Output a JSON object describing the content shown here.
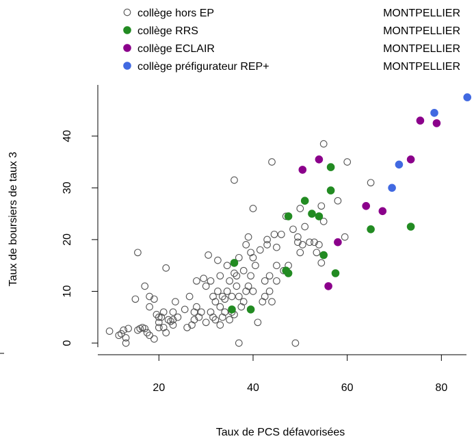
{
  "chart_data": {
    "type": "scatter",
    "xlabel": "Taux de PCS défavorisées",
    "ylabel": "Taux de boursiers de taux 3",
    "xlim": [
      8,
      87
    ],
    "ylim": [
      -1,
      50
    ],
    "x_ticks": [
      20,
      40,
      60,
      80
    ],
    "y_ticks": [
      0,
      10,
      20,
      30,
      40
    ],
    "grid": false,
    "legend_position": "top",
    "series": [
      {
        "name": "collège hors EP",
        "region": "MONTPELLIER",
        "marker": "open-circle",
        "color": "#555555",
        "points": [
          [
            9.5,
            2.3
          ],
          [
            11.5,
            1.5
          ],
          [
            12.5,
            2.5
          ],
          [
            13,
            1
          ],
          [
            13,
            0
          ],
          [
            13.5,
            2.8
          ],
          [
            12,
            1.8
          ],
          [
            15,
            8.5
          ],
          [
            15.5,
            2.5
          ],
          [
            15.5,
            17.5
          ],
          [
            16,
            2.8
          ],
          [
            16.5,
            3
          ],
          [
            17,
            11
          ],
          [
            17,
            2.8
          ],
          [
            17.5,
            2
          ],
          [
            18,
            1.5
          ],
          [
            18,
            7
          ],
          [
            18,
            9
          ],
          [
            19,
            0.8
          ],
          [
            19.5,
            5.5
          ],
          [
            19,
            8.5
          ],
          [
            20,
            5
          ],
          [
            20,
            4
          ],
          [
            20,
            3
          ],
          [
            20.5,
            5
          ],
          [
            21,
            3
          ],
          [
            21,
            6
          ],
          [
            21.5,
            2
          ],
          [
            21.5,
            14.5
          ],
          [
            22,
            4.5
          ],
          [
            22.5,
            4.2
          ],
          [
            23,
            3.5
          ],
          [
            23,
            4.5
          ],
          [
            23,
            6
          ],
          [
            23.5,
            8
          ],
          [
            24,
            5
          ],
          [
            25.5,
            6.5
          ],
          [
            26,
            3
          ],
          [
            26.5,
            9
          ],
          [
            27,
            3.5
          ],
          [
            27.5,
            6
          ],
          [
            27.5,
            4.5
          ],
          [
            28,
            7
          ],
          [
            28,
            12
          ],
          [
            28.5,
            5
          ],
          [
            29,
            6
          ],
          [
            29.5,
            12.5
          ],
          [
            30,
            4
          ],
          [
            30,
            11
          ],
          [
            30.5,
            17
          ],
          [
            31,
            12
          ],
          [
            31,
            6
          ],
          [
            31.5,
            5
          ],
          [
            31.5,
            9
          ],
          [
            32,
            8
          ],
          [
            32,
            4.5
          ],
          [
            32.5,
            10
          ],
          [
            32.5,
            16
          ],
          [
            33,
            7
          ],
          [
            33,
            3.5
          ],
          [
            33,
            13
          ],
          [
            33.5,
            5
          ],
          [
            33.5,
            9
          ],
          [
            34,
            8.5
          ],
          [
            34,
            6
          ],
          [
            34.5,
            15
          ],
          [
            34.5,
            10
          ],
          [
            35,
            4.5
          ],
          [
            35,
            12
          ],
          [
            35.5,
            6
          ],
          [
            35.5,
            9
          ],
          [
            36,
            13.5
          ],
          [
            36,
            5.5
          ],
          [
            36,
            31.5
          ],
          [
            36.5,
            13
          ],
          [
            36.5,
            11
          ],
          [
            37,
            9
          ],
          [
            37,
            16.5
          ],
          [
            37,
            0
          ],
          [
            37.5,
            7
          ],
          [
            38,
            14
          ],
          [
            38,
            8
          ],
          [
            38.5,
            19
          ],
          [
            38.5,
            10
          ],
          [
            39,
            11
          ],
          [
            39,
            20.5
          ],
          [
            39.5,
            17.5
          ],
          [
            39.5,
            13
          ],
          [
            40,
            16.5
          ],
          [
            40,
            10
          ],
          [
            40,
            26
          ],
          [
            40.5,
            15
          ],
          [
            41,
            4
          ],
          [
            41.5,
            18
          ],
          [
            42,
            8
          ],
          [
            42.5,
            9
          ],
          [
            42.5,
            12
          ],
          [
            43,
            19
          ],
          [
            43,
            20
          ],
          [
            43.5,
            13
          ],
          [
            43.5,
            10
          ],
          [
            44,
            8
          ],
          [
            44,
            35
          ],
          [
            44.5,
            21
          ],
          [
            45,
            18.5
          ],
          [
            45,
            12
          ],
          [
            45,
            15
          ],
          [
            46,
            21
          ],
          [
            46.5,
            14
          ],
          [
            47,
            24.5
          ],
          [
            47.5,
            15
          ],
          [
            48.5,
            22
          ],
          [
            49,
            0
          ],
          [
            49.5,
            19.5
          ],
          [
            49.5,
            20.5
          ],
          [
            50,
            17.5
          ],
          [
            50,
            26
          ],
          [
            50.5,
            19
          ],
          [
            51,
            22.5
          ],
          [
            52,
            19.5
          ],
          [
            53,
            19.5
          ],
          [
            53.5,
            17.5
          ],
          [
            54,
            19
          ],
          [
            54.5,
            15.5
          ],
          [
            54.5,
            26.5
          ],
          [
            55,
            23.5
          ],
          [
            55,
            38.5
          ],
          [
            58,
            27.5
          ],
          [
            59.5,
            20.5
          ],
          [
            60,
            35
          ],
          [
            65,
            31
          ]
        ]
      },
      {
        "name": "collège RRS",
        "region": "MONTPELLIER",
        "marker": "filled-circle",
        "color": "#228b22",
        "points": [
          [
            35.5,
            6.5
          ],
          [
            36,
            15.5
          ],
          [
            39.5,
            6.5
          ],
          [
            47,
            14
          ],
          [
            47.5,
            13.5
          ],
          [
            47.5,
            24.5
          ],
          [
            51,
            27.5
          ],
          [
            52.5,
            25
          ],
          [
            54,
            24.5
          ],
          [
            55,
            17
          ],
          [
            56.5,
            34
          ],
          [
            56.5,
            29.5
          ],
          [
            57.5,
            13.5
          ],
          [
            65,
            22
          ],
          [
            73.5,
            22.5
          ]
        ]
      },
      {
        "name": "collège ECLAIR",
        "region": "MONTPELLIER",
        "marker": "filled-circle",
        "color": "#8b008b",
        "points": [
          [
            50.5,
            33.5
          ],
          [
            54,
            35.5
          ],
          [
            56,
            11
          ],
          [
            58,
            19.5
          ],
          [
            64,
            26.5
          ],
          [
            67.5,
            25.5
          ],
          [
            73.5,
            35.5
          ],
          [
            75.5,
            43
          ],
          [
            79,
            42.5
          ]
        ]
      },
      {
        "name": "collège préfigurateur REP+",
        "region": "MONTPELLIER",
        "marker": "filled-circle",
        "color": "#4169e1",
        "points": [
          [
            69.5,
            30
          ],
          [
            71,
            34.5
          ],
          [
            78.5,
            44.5
          ],
          [
            85.5,
            47.5
          ]
        ]
      }
    ]
  }
}
